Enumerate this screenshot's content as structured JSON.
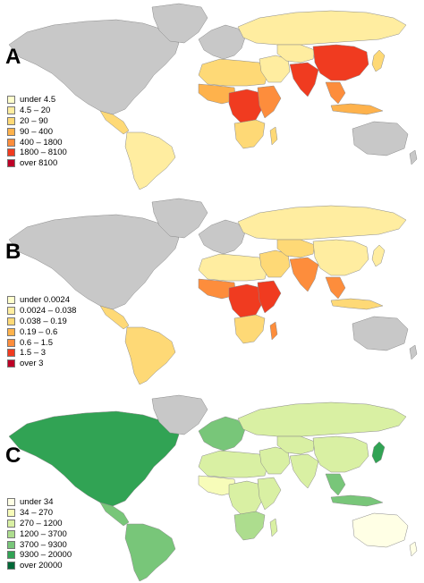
{
  "panels": [
    {
      "letter": "A",
      "legend": [
        {
          "label": "under 4.5",
          "color": "#ffffcc"
        },
        {
          "label": "4.5 – 20",
          "color": "#ffeda0"
        },
        {
          "label": "20 – 90",
          "color": "#fed976"
        },
        {
          "label": "90 – 400",
          "color": "#feb24c"
        },
        {
          "label": "400 – 1800",
          "color": "#fd8d3c"
        },
        {
          "label": "1800 – 8100",
          "color": "#f03b20"
        },
        {
          "label": "over 8100",
          "color": "#bd0026"
        }
      ],
      "regions": {
        "north_america": "#c8c8c8",
        "greenland": "#c8c8c8",
        "central_america": "#fed976",
        "south_america": "#ffeda0",
        "europe": "#c8c8c8",
        "russia": "#ffeda0",
        "north_africa": "#fed976",
        "west_africa": "#feb24c",
        "central_africa": "#f03b20",
        "east_africa": "#fd8d3c",
        "southern_africa": "#fed976",
        "madagascar": "#fed976",
        "middle_east": "#ffeda0",
        "central_asia": "#ffeda0",
        "south_asia": "#f03b20",
        "east_asia": "#f03b20",
        "southeast_asia": "#fd8d3c",
        "indonesia": "#feb24c",
        "japan": "#fed976",
        "australia": "#c8c8c8",
        "new_zealand": "#c8c8c8"
      }
    },
    {
      "letter": "B",
      "legend": [
        {
          "label": "under 0.0024",
          "color": "#ffffcc"
        },
        {
          "label": "0.0024 – 0.038",
          "color": "#ffeda0"
        },
        {
          "label": "0.038 – 0.19",
          "color": "#fed976"
        },
        {
          "label": "0.19 – 0.6",
          "color": "#feb24c"
        },
        {
          "label": "0.6 – 1.5",
          "color": "#fd8d3c"
        },
        {
          "label": "1.5 – 3",
          "color": "#f03b20"
        },
        {
          "label": "over 3",
          "color": "#bd0026"
        }
      ],
      "regions": {
        "north_america": "#c8c8c8",
        "greenland": "#c8c8c8",
        "central_america": "#fed976",
        "south_america": "#fed976",
        "europe": "#c8c8c8",
        "russia": "#ffeda0",
        "north_africa": "#ffeda0",
        "west_africa": "#fd8d3c",
        "central_africa": "#f03b20",
        "east_africa": "#f03b20",
        "southern_africa": "#fed976",
        "madagascar": "#fd8d3c",
        "middle_east": "#fed976",
        "central_asia": "#fed976",
        "south_asia": "#fd8d3c",
        "east_asia": "#ffeda0",
        "southeast_asia": "#fd8d3c",
        "indonesia": "#fed976",
        "japan": "#ffeda0",
        "australia": "#c8c8c8",
        "new_zealand": "#c8c8c8"
      }
    },
    {
      "letter": "C",
      "legend": [
        {
          "label": "under 34",
          "color": "#ffffe5"
        },
        {
          "label": "34 – 270",
          "color": "#f7fcb9"
        },
        {
          "label": "270 – 1200",
          "color": "#d9f0a3"
        },
        {
          "label": "1200 – 3700",
          "color": "#addd8e"
        },
        {
          "label": "3700 – 9300",
          "color": "#78c679"
        },
        {
          "label": "9300 – 20000",
          "color": "#31a354"
        },
        {
          "label": "over 20000",
          "color": "#006837"
        }
      ],
      "regions": {
        "north_america": "#31a354",
        "greenland": "#c8c8c8",
        "central_america": "#78c679",
        "south_america": "#78c679",
        "europe": "#78c679",
        "russia": "#d9f0a3",
        "north_africa": "#d9f0a3",
        "west_africa": "#f7fcb9",
        "central_africa": "#d9f0a3",
        "east_africa": "#d9f0a3",
        "southern_africa": "#addd8e",
        "madagascar": "#d9f0a3",
        "middle_east": "#d9f0a3",
        "central_asia": "#d9f0a3",
        "south_asia": "#d9f0a3",
        "east_asia": "#d9f0a3",
        "southeast_asia": "#78c679",
        "indonesia": "#78c679",
        "japan": "#31a354",
        "australia": "#ffffe5",
        "new_zealand": "#ffffe5"
      }
    }
  ]
}
